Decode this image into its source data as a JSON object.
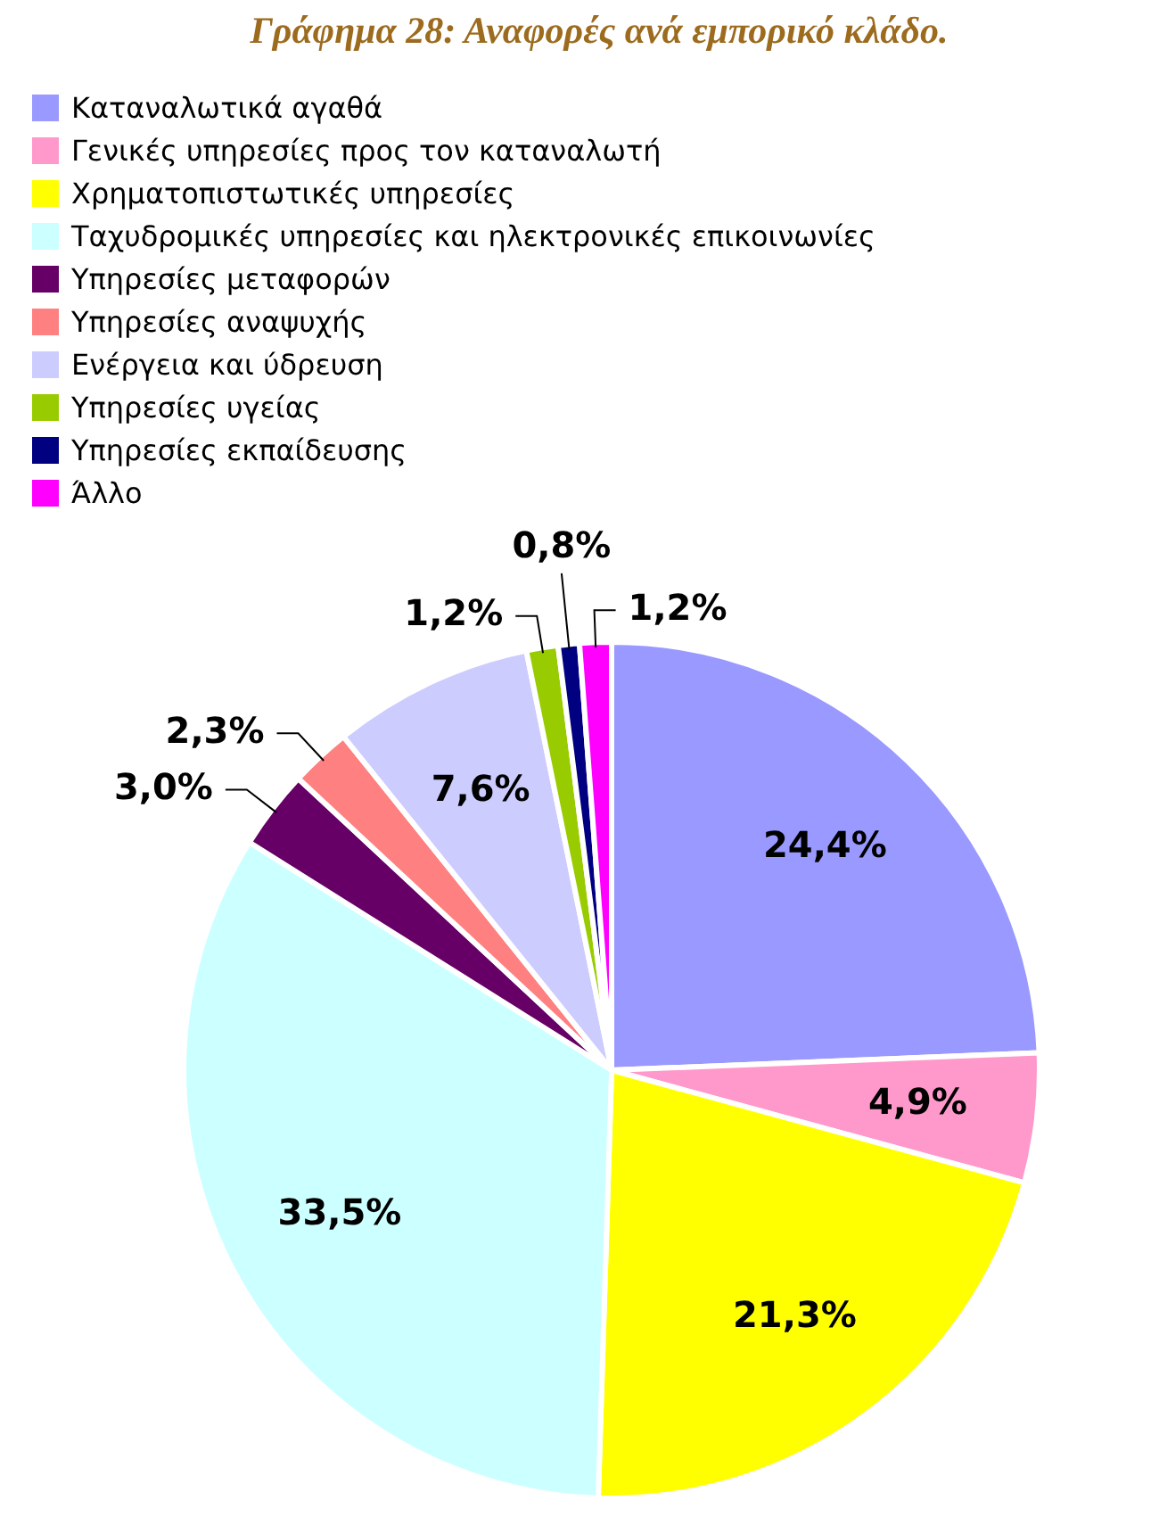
{
  "chart_data": {
    "type": "pie",
    "title": "Γράφημα 28: Αναφορές ανά εμπορικό κλάδο.",
    "categories": [
      "Καταναλωτικά αγαθά",
      "Γενικές υπηρεσίες προς τον καταναλωτή",
      "Χρηματοπιστωτικές υπηρεσίες",
      "Ταχυδρομικές υπηρεσίες και ηλεκτρονικές επικοινωνίες",
      "Υπηρεσίες μεταφορών",
      "Υπηρεσίες αναψυχής",
      "Ενέργεια και ύδρευση",
      "Υπηρεσίες υγείας",
      "Υπηρεσίες εκπαίδευσης",
      "Άλλο"
    ],
    "values": [
      24.4,
      4.9,
      21.3,
      33.5,
      3.0,
      2.3,
      7.6,
      1.2,
      0.8,
      1.2
    ],
    "colors": [
      "#9999ff",
      "#ff99cc",
      "#ffff00",
      "#ccffff",
      "#660066",
      "#ff8080",
      "#ccccff",
      "#99cc00",
      "#000080",
      "#ff00ff"
    ],
    "value_labels": [
      "24,4%",
      "4,9%",
      "21,3%",
      "33,5%",
      "3,0%",
      "2,3%",
      "7,6%",
      "1,2%",
      "0,8%",
      "1,2%"
    ],
    "legend": "top left"
  }
}
